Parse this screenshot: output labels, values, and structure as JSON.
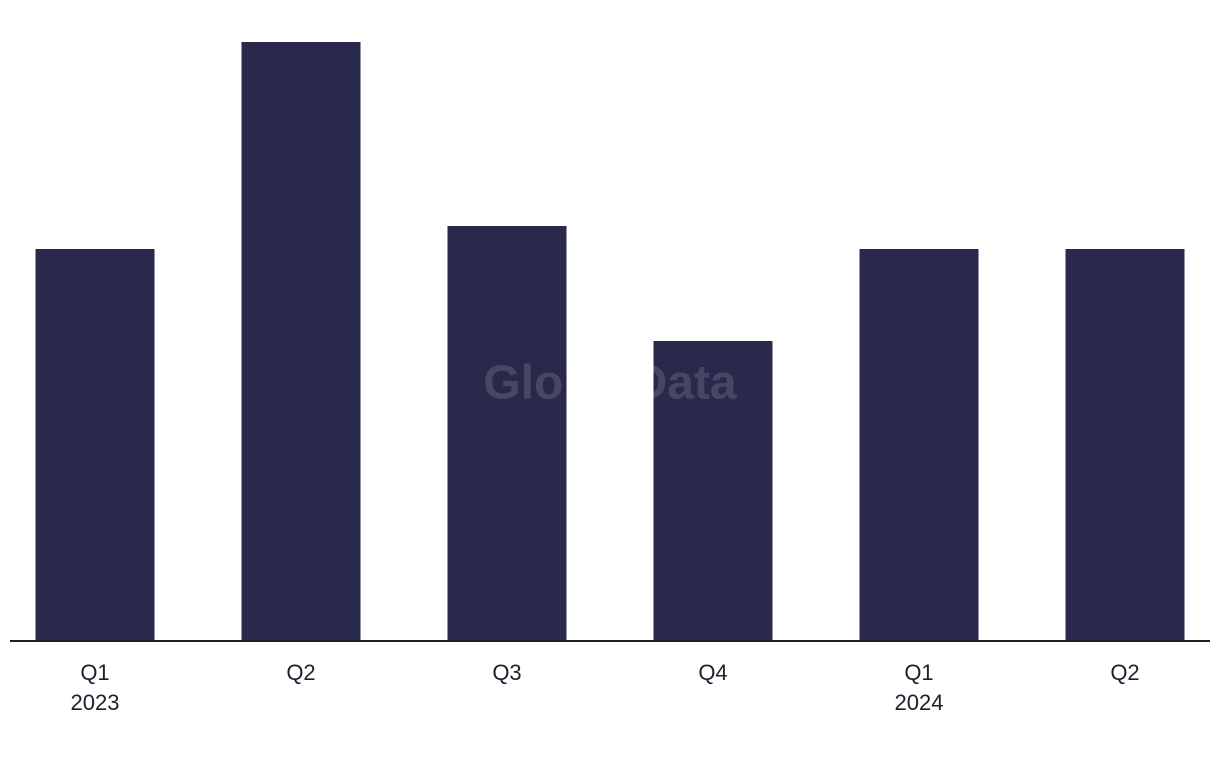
{
  "chart_data": {
    "type": "bar",
    "categories": [
      [
        "Q1",
        "2023"
      ],
      [
        "Q2"
      ],
      [
        "Q3"
      ],
      [
        "Q4"
      ],
      [
        "Q1",
        "2024"
      ],
      [
        "Q2"
      ]
    ],
    "values": [
      17,
      26,
      18,
      13,
      17,
      17
    ],
    "color": "#29294b",
    "ylim": [
      0,
      26
    ],
    "watermark": "GlobalData"
  }
}
